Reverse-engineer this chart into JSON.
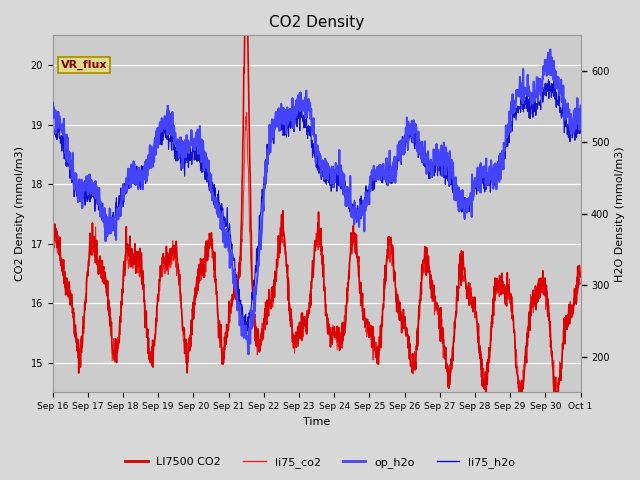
{
  "title": "CO2 Density",
  "ylabel_left": "CO2 Density (mmol/m3)",
  "ylabel_right": "H2O Density (mmol/m3)",
  "xlabel": "Time",
  "ylim_left": [
    14.5,
    20.5
  ],
  "ylim_right": [
    150,
    650
  ],
  "fig_bg_color": "#d8d8d8",
  "plot_bg_color": "#cccccc",
  "annotation_text": "VR_flux",
  "vr_flux_box_color": "#dddd88",
  "vr_flux_edge_color": "#aa8800",
  "vr_flux_text_color": "#880000",
  "x_tick_labels": [
    "Sep 16",
    "Sep 17",
    "Sep 18",
    "Sep 19",
    "Sep 20",
    "Sep 21",
    "Sep 22",
    "Sep 23",
    "Sep 24",
    "Sep 25",
    "Sep 26",
    "Sep 27",
    "Sep 28",
    "Sep 29",
    "Sep 30",
    "Oct 1"
  ],
  "co2_color": "#dd0000",
  "li75_co2_color": "#ee2222",
  "op_h2o_color": "#4444ff",
  "li75_h2o_color": "#1111cc",
  "n_points": 1500
}
